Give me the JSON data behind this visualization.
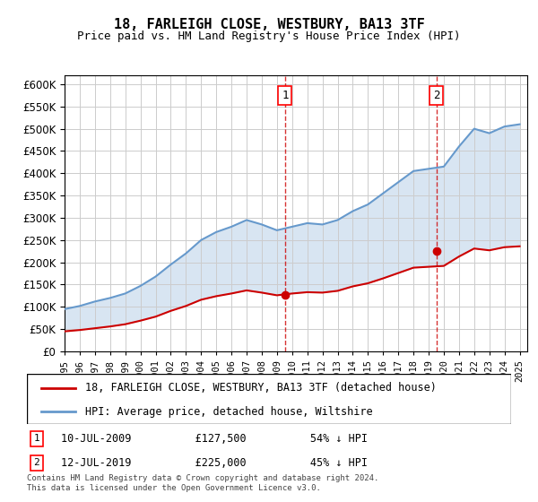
{
  "title": "18, FARLEIGH CLOSE, WESTBURY, BA13 3TF",
  "subtitle": "Price paid vs. HM Land Registry's House Price Index (HPI)",
  "hpi_label": "HPI: Average price, detached house, Wiltshire",
  "price_label": "18, FARLEIGH CLOSE, WESTBURY, BA13 3TF (detached house)",
  "legend_note1": "1     10-JUL-2009          £127,500          54% ↓ HPI",
  "legend_note2": "2     12-JUL-2019          £225,000          45% ↓ HPI",
  "footnote": "Contains HM Land Registry data © Crown copyright and database right 2024.\nThis data is licensed under the Open Government Licence v3.0.",
  "sale1_date": 2009.53,
  "sale1_price": 127500,
  "sale2_date": 2019.53,
  "sale2_price": 225000,
  "hpi_color": "#6699cc",
  "price_color": "#cc0000",
  "sale_marker_color": "#cc0000",
  "vline_color": "#cc0000",
  "ylim": [
    0,
    620000
  ],
  "xlim_left": 1995.0,
  "xlim_right": 2025.5,
  "background_color": "#f0f4ff",
  "plot_bg": "#ffffff",
  "hpi_years": [
    1995,
    1996,
    1997,
    1998,
    1999,
    2000,
    2001,
    2002,
    2003,
    2004,
    2005,
    2006,
    2007,
    2008,
    2009,
    2010,
    2011,
    2012,
    2013,
    2014,
    2015,
    2016,
    2017,
    2018,
    2019,
    2020,
    2021,
    2022,
    2023,
    2024,
    2025
  ],
  "hpi_values": [
    95000,
    102000,
    112000,
    120000,
    130000,
    147000,
    168000,
    195000,
    220000,
    250000,
    268000,
    280000,
    295000,
    285000,
    272000,
    280000,
    288000,
    285000,
    295000,
    315000,
    330000,
    355000,
    380000,
    405000,
    410000,
    415000,
    460000,
    500000,
    490000,
    505000,
    510000
  ],
  "price_years": [
    1995,
    1996,
    1997,
    1998,
    1999,
    2000,
    2001,
    2002,
    2003,
    2004,
    2005,
    2006,
    2007,
    2008,
    2009,
    2010,
    2011,
    2012,
    2013,
    2014,
    2015,
    2016,
    2017,
    2018,
    2019,
    2020,
    2021,
    2022,
    2023,
    2024,
    2025
  ],
  "price_values": [
    45000,
    48000,
    52000,
    56000,
    61000,
    69000,
    78000,
    91000,
    102000,
    116000,
    124000,
    130000,
    137000,
    132000,
    126000,
    130000,
    133000,
    132000,
    136000,
    146000,
    153000,
    164000,
    176000,
    188000,
    190000,
    192000,
    213000,
    231000,
    227000,
    234000,
    236000
  ]
}
